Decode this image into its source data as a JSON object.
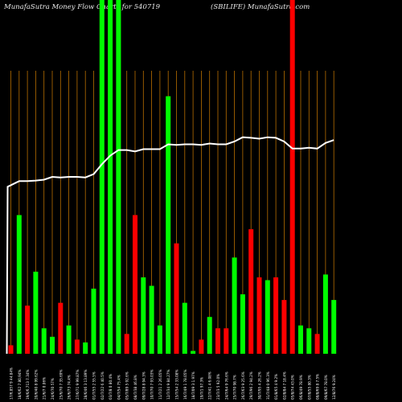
{
  "header": {
    "left_title": "MunafaSutra  Money Flow  Charts for 540719",
    "right_title": "(SBILIFE) MunafaSutra.com"
  },
  "chart_data": {
    "type": "bar",
    "y_range": [
      0,
      100
    ],
    "colors": {
      "up": "#00ff00",
      "down": "#ff0000",
      "line": "#ffffff",
      "grid": "#b86e00",
      "background": "#000000",
      "text": "#ffffff"
    },
    "bar_values": [
      3,
      49,
      17,
      29,
      9,
      6,
      18,
      10,
      5,
      4,
      23,
      100,
      100,
      100,
      7,
      49,
      27,
      24,
      10,
      91,
      39,
      18,
      1,
      5,
      13,
      9,
      9,
      34,
      21,
      44,
      27,
      26,
      27,
      19,
      100,
      10,
      9,
      7,
      28,
      19
    ],
    "bar_colors": [
      "red",
      "green",
      "red",
      "green",
      "green",
      "green",
      "red",
      "green",
      "red",
      "green",
      "green",
      "green",
      "green",
      "green",
      "red",
      "red",
      "green",
      "green",
      "green",
      "green",
      "red",
      "green",
      "green",
      "red",
      "green",
      "red",
      "red",
      "green",
      "green",
      "red",
      "red",
      "green",
      "red",
      "red",
      "red",
      "green",
      "green",
      "red",
      "green",
      "green"
    ],
    "line_values": [
      59,
      61,
      61,
      61.2,
      61.5,
      62.5,
      62.3,
      62.5,
      62.5,
      62.3,
      63.5,
      67,
      70,
      72,
      72,
      71.5,
      72.3,
      72.3,
      72.3,
      74,
      73.8,
      74,
      74,
      73.8,
      74.3,
      74,
      74,
      75,
      76.5,
      76.3,
      76,
      76.5,
      76.3,
      75,
      72.5,
      72.5,
      72.8,
      72.5,
      74.5,
      75.5
    ],
    "x_labels": [
      "17/6,857  9 44.84%",
      "18/6/62 7 80,94%",
      "19/6/6,713 7.34%",
      "20/6/40 8 99.62%",
      "21/6/7 0.06%",
      "24/6/70 57%",
      "25/6/70 7 35.69%",
      "26/6/73 74.4%",
      "27/6/71 9 99.87%",
      "28/6/46 3 13.89%",
      "01/7/55 2 55.5%",
      "02/7/22 6 40.5%",
      "03/7/8 0 80.4%",
      "04/7/54 75.4%",
      "05/7/89 5 92.6%",
      "08/7/38 46.8%",
      "09/7/28 8 94.3%",
      "10/7/70 7 93.03%",
      "11/7/21 2 26.05%",
      "12/7/34 9 84.27%",
      "15/7/54 2 33.08%",
      "16/7/49 1 78.05%",
      "18/7/09 3 1.97%",
      "19/7/1 97.3%",
      "22/7/41 4 6.08%",
      "23/7/3 5 92.0%",
      "24/7/64 9 76.6%",
      "25/7/70 98.7%",
      "26/7/63 9 25.6%",
      "29/7/96 2 94.2%",
      "30/7/95 4 26.2%",
      "31/7/48 0 96.3%",
      "01/8/65 4 9.2%",
      "02/8/84 7 18.4%",
      "05/8/74 43.0%",
      "06/8/49 78.9%",
      "07/8/55 80.3%",
      "08/8/69 8 7.5%",
      "09/8/67 78.0%",
      "12/8/76 9.24%"
    ]
  }
}
